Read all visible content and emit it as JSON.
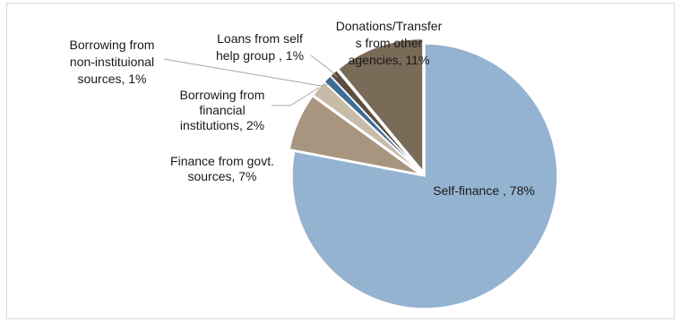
{
  "chart_data": {
    "type": "pie",
    "title": "",
    "series": [
      {
        "slices": [
          {
            "label_lines": [
              "Self-finance , 78%"
            ],
            "category": "Self-finance",
            "value": 78,
            "color": "#94b3d0"
          },
          {
            "label_lines": [
              "Finance from govt.",
              "sources, 7%"
            ],
            "category": "Finance from govt. sources",
            "value": 7,
            "color": "#a89580"
          },
          {
            "label_lines": [
              "Borrowing from",
              "financial",
              "institutions, 2%"
            ],
            "category": "Borrowing from financial institutions",
            "value": 2,
            "color": "#c8bca9"
          },
          {
            "label_lines": [
              "Borrowing from",
              "non-instituional",
              "sources, 1%"
            ],
            "category": "Borrowing from non-instituional sources",
            "value": 1,
            "color": "#3d6c96"
          },
          {
            "label_lines": [
              "Loans from self",
              "help group , 1%"
            ],
            "category": "Loans from self help group",
            "value": 1,
            "color": "#5c4d3e"
          },
          {
            "label_lines": [
              "Donations/Transfer",
              "s from other",
              "agencies, 11%"
            ],
            "category": "Donations/Transfers from other agencies",
            "value": 11,
            "color": "#7a6a58"
          }
        ]
      }
    ],
    "legend": "none"
  }
}
